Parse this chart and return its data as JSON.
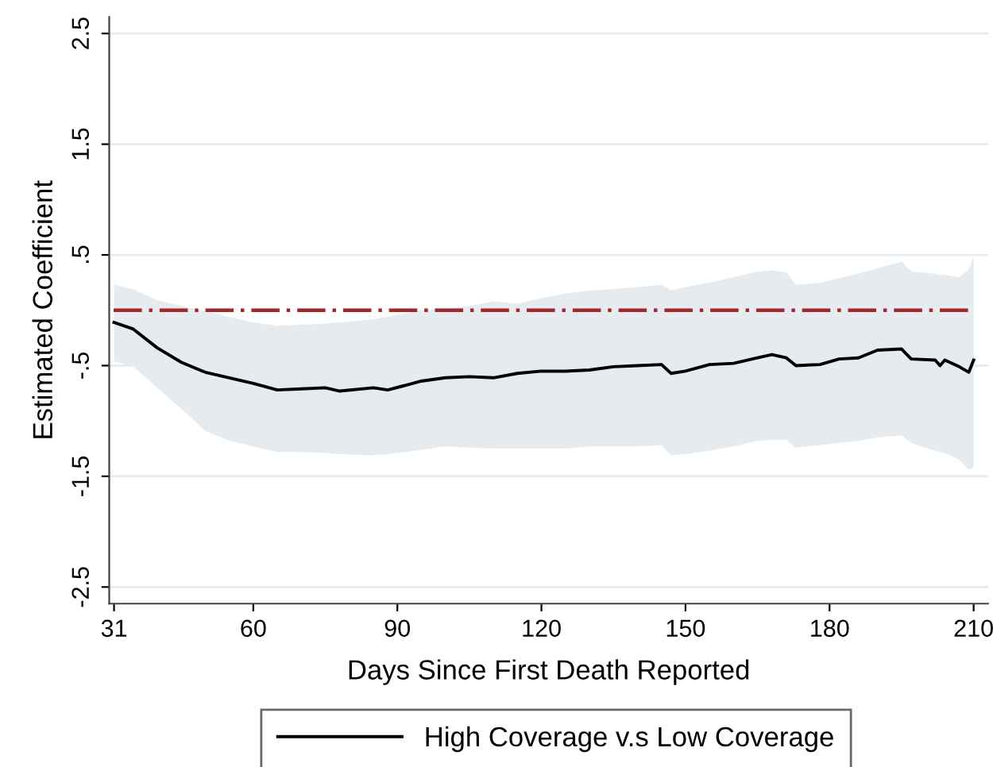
{
  "chart_data": {
    "type": "line",
    "xlabel": "Days Since First Death Reported",
    "ylabel": "Estimated Coefficient",
    "x": [
      31,
      35,
      40,
      45,
      50,
      55,
      60,
      65,
      70,
      75,
      78,
      85,
      88,
      95,
      100,
      105,
      110,
      115,
      120,
      125,
      130,
      135,
      140,
      145,
      147,
      150,
      155,
      160,
      165,
      168,
      171,
      173,
      178,
      182,
      186,
      190,
      195,
      197,
      202,
      203,
      204,
      207,
      209,
      210
    ],
    "series": [
      {
        "name": "High Coverage v.s Low Coverage",
        "color": "#000000",
        "values": [
          -0.11,
          -0.17,
          -0.34,
          -0.47,
          -0.56,
          -0.61,
          -0.66,
          -0.72,
          -0.71,
          -0.7,
          -0.73,
          -0.7,
          -0.72,
          -0.64,
          -0.61,
          -0.6,
          -0.61,
          -0.57,
          -0.55,
          -0.55,
          -0.54,
          -0.51,
          -0.5,
          -0.49,
          -0.57,
          -0.55,
          -0.49,
          -0.48,
          -0.43,
          -0.4,
          -0.43,
          -0.5,
          -0.49,
          -0.44,
          -0.43,
          -0.36,
          -0.35,
          -0.44,
          -0.45,
          -0.5,
          -0.45,
          -0.51,
          -0.56,
          -0.45
        ],
        "upper": [
          0.23,
          0.19,
          0.09,
          0.04,
          -0.01,
          -0.06,
          -0.11,
          -0.14,
          -0.13,
          -0.12,
          -0.11,
          -0.08,
          -0.06,
          0.0,
          0.01,
          0.04,
          0.08,
          0.06,
          0.11,
          0.15,
          0.18,
          0.19,
          0.21,
          0.23,
          0.18,
          0.21,
          0.25,
          0.3,
          0.35,
          0.36,
          0.34,
          0.23,
          0.25,
          0.29,
          0.33,
          0.38,
          0.44,
          0.35,
          0.33,
          0.32,
          0.32,
          0.3,
          0.37,
          0.49
        ],
        "lower": [
          -0.46,
          -0.51,
          -0.7,
          -0.89,
          -1.09,
          -1.18,
          -1.23,
          -1.28,
          -1.28,
          -1.29,
          -1.3,
          -1.31,
          -1.3,
          -1.26,
          -1.23,
          -1.24,
          -1.25,
          -1.25,
          -1.25,
          -1.25,
          -1.23,
          -1.23,
          -1.23,
          -1.22,
          -1.31,
          -1.3,
          -1.27,
          -1.23,
          -1.18,
          -1.17,
          -1.17,
          -1.24,
          -1.22,
          -1.2,
          -1.18,
          -1.15,
          -1.13,
          -1.2,
          -1.27,
          -1.28,
          -1.29,
          -1.35,
          -1.44,
          -1.42
        ]
      }
    ],
    "xlim": [
      30,
      213
    ],
    "xticks": [
      31,
      60,
      90,
      120,
      150,
      180,
      210
    ],
    "ylim": [
      -2.65,
      2.65
    ],
    "yticks": [
      {
        "value": -2.5,
        "label": "-2.5"
      },
      {
        "value": -1.5,
        "label": "-1.5"
      },
      {
        "value": -0.5,
        "label": "-.5"
      },
      {
        "value": 0.5,
        "label": ".5"
      },
      {
        "value": 1.5,
        "label": "1.5"
      },
      {
        "value": 2.5,
        "label": "2.5"
      }
    ],
    "ref_lines": [
      {
        "axis": "y",
        "value": 0,
        "color": "#a0282d",
        "line_style": "dashed"
      }
    ],
    "grid": "y",
    "legend": "bottom",
    "marker": "none",
    "line_style": "solid"
  }
}
